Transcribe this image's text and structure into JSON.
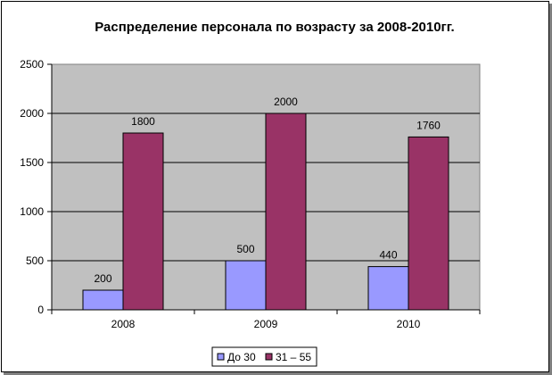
{
  "chart_data": {
    "type": "bar",
    "title": "Распределение персонала по возрасту за 2008-2010гг.",
    "xlabel": "",
    "ylabel": "",
    "categories": [
      "2008",
      "2009",
      "2010"
    ],
    "series": [
      {
        "name": "До 30",
        "values": [
          200,
          500,
          440
        ],
        "color": "#9999ff"
      },
      {
        "name": "31 – 55",
        "values": [
          1800,
          2000,
          1760
        ],
        "color": "#993366"
      }
    ],
    "ylim": [
      0,
      2500
    ],
    "yticks": [
      "0",
      "500",
      "1000",
      "1500",
      "2000",
      "2500"
    ],
    "ytick_values": [
      0,
      500,
      1000,
      1500,
      2000,
      2500
    ],
    "grid": true,
    "legend_position": "bottom",
    "plot_background": "#c0c0c0"
  }
}
